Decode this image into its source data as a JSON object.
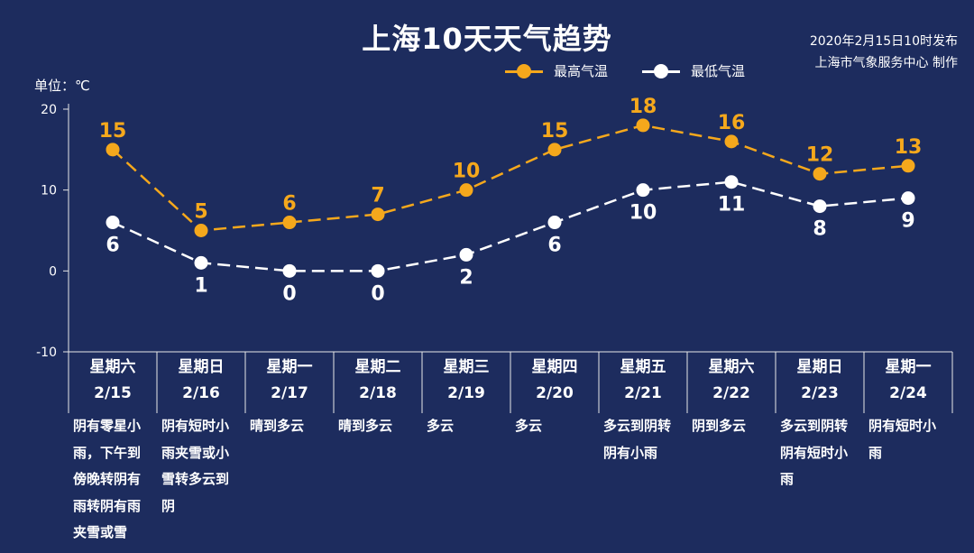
{
  "header": {
    "title": "上海10天天气趋势",
    "publish_line1": "2020年2月15日10时发布",
    "publish_line2": "上海市气象服务中心 制作"
  },
  "unit_label": "单位：℃",
  "colors": {
    "high": "#f5a81c",
    "low": "#ffffff",
    "background": "#1d2c5e",
    "axis": "#e8e8e8"
  },
  "chart_data": {
    "type": "line",
    "title": "上海10天天气趋势",
    "ylabel": "单位：℃",
    "ylim": [
      -10,
      20
    ],
    "yticks": [
      -10,
      0,
      10,
      20
    ],
    "legend_position": "top-right",
    "grid": false,
    "categories": [
      "2/15",
      "2/16",
      "2/17",
      "2/18",
      "2/19",
      "2/20",
      "2/21",
      "2/22",
      "2/23",
      "2/24"
    ],
    "weekdays": [
      "星期六",
      "星期日",
      "星期一",
      "星期二",
      "星期三",
      "星期四",
      "星期五",
      "星期六",
      "星期日",
      "星期一"
    ],
    "series": [
      {
        "name": "最高气温",
        "values": [
          15,
          5,
          6,
          7,
          10,
          15,
          18,
          16,
          12,
          13
        ]
      },
      {
        "name": "最低气温",
        "values": [
          6,
          1,
          0,
          0,
          2,
          6,
          10,
          11,
          8,
          9
        ]
      }
    ],
    "descriptions": [
      "阴有零星小雨，下午到傍晚转阴有雨转阴有雨夹雪或雪",
      "阴有短时小雨夹雪或小雪转多云到阴",
      "晴到多云",
      "晴到多云",
      "多云",
      "多云",
      "多云到阴转阴有小雨",
      "阴到多云",
      "多云到阴转阴有短时小雨",
      "阴有短时小雨"
    ]
  }
}
